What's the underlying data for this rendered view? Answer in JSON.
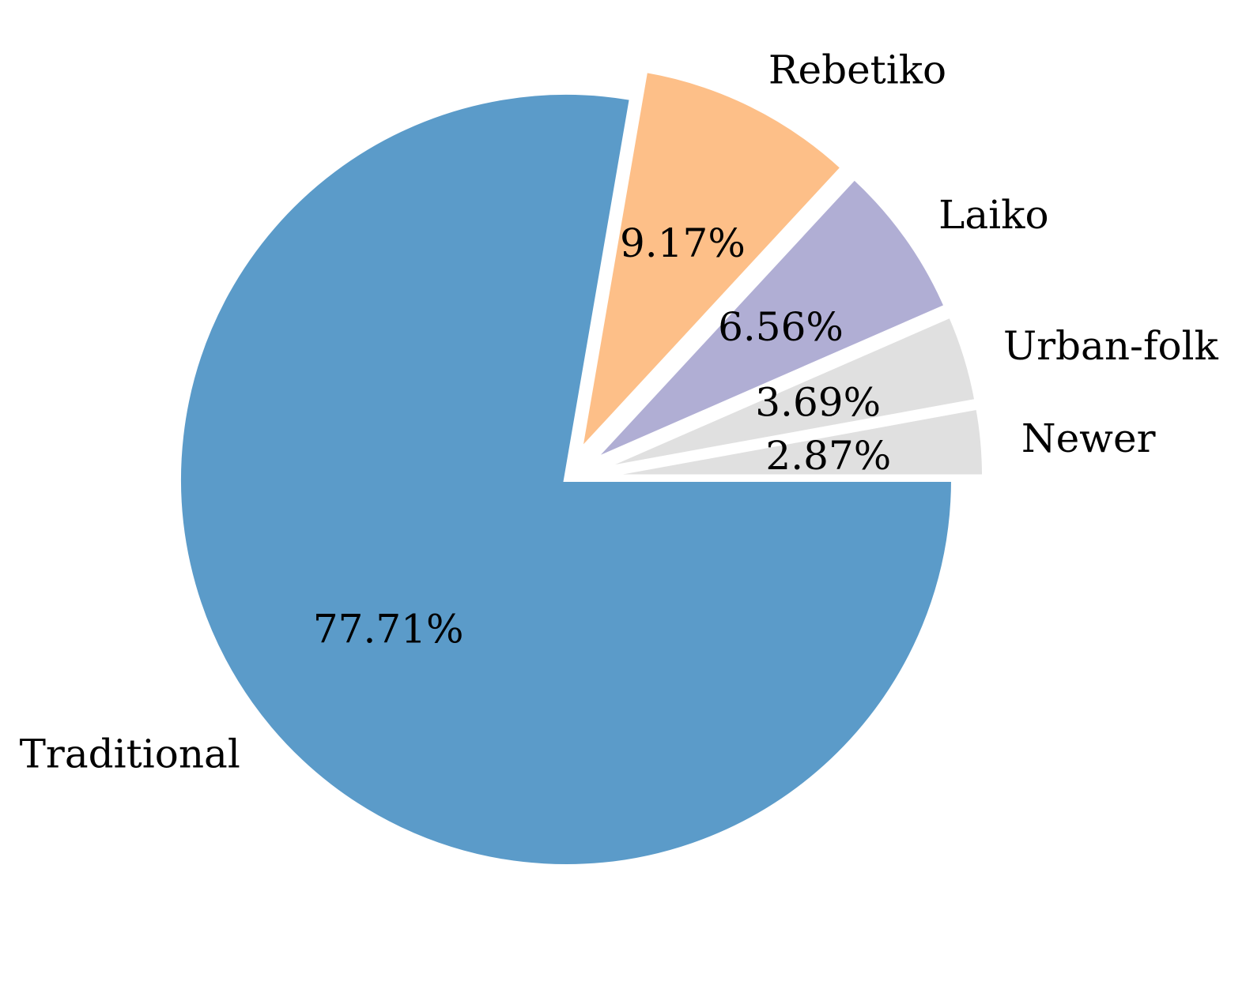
{
  "chart_data": {
    "type": "pie",
    "title": "",
    "categories": [
      "Traditional",
      "Rebetiko",
      "Laiko",
      "Urban-folk",
      "Newer"
    ],
    "values": [
      77.71,
      9.17,
      6.56,
      3.69,
      2.87
    ],
    "percent_labels": [
      "77.71%",
      "9.17%",
      "6.56%",
      "3.69%",
      "2.87%"
    ],
    "colors": [
      "#5b9bc9",
      "#fdbf88",
      "#b0aed4",
      "#e0e0e0",
      "#e0e0e0"
    ],
    "exploded": [
      "Rebetiko",
      "Laiko",
      "Urban-folk",
      "Newer"
    ],
    "start_angle_deg": 0,
    "direction": "clockwise",
    "legend": "none"
  }
}
